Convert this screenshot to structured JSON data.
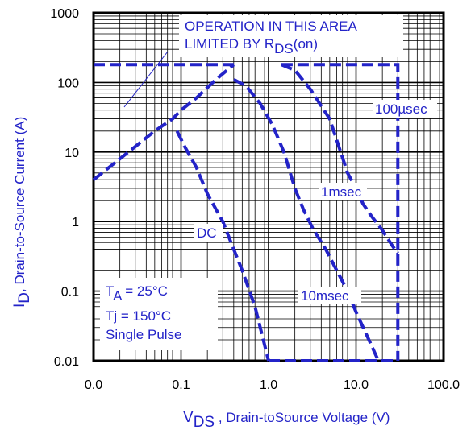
{
  "chart_data": {
    "type": "line",
    "x_scale": "log",
    "y_scale": "log",
    "xlim": [
      0.01,
      100
    ],
    "ylim": [
      0.01,
      1000
    ],
    "x_tick_labels": [
      "0.0",
      "0.1",
      "1.0",
      "10.0",
      "100.0"
    ],
    "y_tick_labels": [
      "0.01",
      "0.1",
      "1",
      "10",
      "100",
      "1000"
    ],
    "grid": true,
    "colors": {
      "series": "#2323c8",
      "frame": "#000000",
      "grid": "#000000"
    },
    "xlabel": {
      "main": "V",
      "sub": "DS",
      "rest": " , Drain-toSource Voltage (V)"
    },
    "ylabel": {
      "main": "I",
      "sub": "D",
      "rest": ",  Drain-to-Source Current (A)"
    },
    "annotation": {
      "line1": "OPERATION IN THIS AREA",
      "line2_prefix": "LIMITED BY R",
      "line2_sub": "DS",
      "line2_suffix": "(on)"
    },
    "conditions": {
      "ta_main": "T",
      "ta_sub": "A",
      "ta_rest": " = 25°C",
      "tj": "Tj = 150°C",
      "pulse": "Single Pulse"
    },
    "series": [
      {
        "name": "100µsec",
        "points": [
          [
            1.4,
            180
          ],
          [
            30,
            180
          ],
          [
            30,
            0.01
          ]
        ]
      },
      {
        "name": "1msec",
        "points": [
          [
            1.4,
            180
          ],
          [
            2,
            150
          ],
          [
            3,
            80
          ],
          [
            5,
            30
          ],
          [
            6,
            15
          ],
          [
            8,
            5
          ],
          [
            10,
            3
          ],
          [
            12,
            1.8
          ],
          [
            15,
            1.2
          ],
          [
            20,
            0.75
          ],
          [
            26,
            0.45
          ],
          [
            30,
            0.35
          ]
        ]
      },
      {
        "name": "10msec",
        "points": [
          [
            0.4,
            110
          ],
          [
            0.55,
            90
          ],
          [
            0.8,
            50
          ],
          [
            1.1,
            25
          ],
          [
            1.5,
            10
          ],
          [
            2,
            3
          ],
          [
            2.5,
            1.5
          ],
          [
            3.2,
            0.8
          ],
          [
            4.5,
            0.4
          ],
          [
            6,
            0.2
          ],
          [
            8,
            0.1
          ],
          [
            10,
            0.05
          ],
          [
            14,
            0.02
          ],
          [
            18,
            0.01
          ]
        ]
      },
      {
        "name": "DC",
        "points": [
          [
            0.09,
            20
          ],
          [
            0.11,
            12
          ],
          [
            0.15,
            6
          ],
          [
            0.2,
            2.5
          ],
          [
            0.3,
            1
          ],
          [
            0.4,
            0.4
          ],
          [
            0.5,
            0.2
          ],
          [
            0.7,
            0.06
          ],
          [
            1,
            0.01
          ]
        ]
      },
      {
        "name": "Rds(on) limit",
        "points": [
          [
            0.01,
            4
          ],
          [
            0.02,
            8
          ],
          [
            0.03,
            12
          ],
          [
            0.05,
            20
          ],
          [
            0.08,
            30
          ],
          [
            0.1,
            40
          ],
          [
            0.15,
            60
          ],
          [
            0.25,
            110
          ],
          [
            0.4,
            180
          ]
        ]
      }
    ],
    "top_line": {
      "points": [
        [
          0.01,
          180
        ],
        [
          0.45,
          180
        ]
      ]
    },
    "bottom_line": {
      "points": [
        [
          1,
          0.01
        ],
        [
          30,
          0.01
        ]
      ]
    },
    "curve_labels": [
      {
        "text": "100µsec",
        "series": "100µsec"
      },
      {
        "text": "1msec",
        "series": "1msec"
      },
      {
        "text": "10msec",
        "series": "10msec"
      },
      {
        "text": "DC",
        "series": "DC"
      }
    ]
  }
}
